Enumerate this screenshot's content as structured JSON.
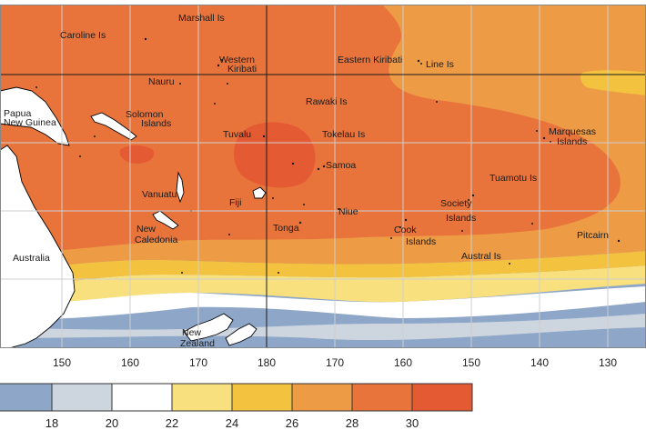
{
  "map": {
    "longitude_ticks": [
      "150",
      "160",
      "170",
      "180",
      "170",
      "160",
      "150",
      "140",
      "130"
    ],
    "places": [
      {
        "id": "marshall-is",
        "text": "Marshall Is"
      },
      {
        "id": "caroline-is",
        "text": "Caroline Is"
      },
      {
        "id": "western-kiribati-1",
        "text": "Western"
      },
      {
        "id": "western-kiribati-2",
        "text": "Kiribati"
      },
      {
        "id": "eastern-kiribati",
        "text": "Eastern Kiribati"
      },
      {
        "id": "line-is",
        "text": "Line Is"
      },
      {
        "id": "nauru",
        "text": "Nauru"
      },
      {
        "id": "papua-1",
        "text": "Papua"
      },
      {
        "id": "papua-2",
        "text": "New Guinea"
      },
      {
        "id": "solomon-1",
        "text": "Solomon"
      },
      {
        "id": "solomon-2",
        "text": "Islands"
      },
      {
        "id": "phoenix-is",
        "text": "Rawaki Is"
      },
      {
        "id": "marquesas-1",
        "text": "Marquesas"
      },
      {
        "id": "marquesas-2",
        "text": "Islands"
      },
      {
        "id": "tuvalu",
        "text": "Tuvalu"
      },
      {
        "id": "tokelau",
        "text": "Tokelau Is"
      },
      {
        "id": "samoa",
        "text": "Samoa"
      },
      {
        "id": "tuamotu",
        "text": "Tuamotu Is"
      },
      {
        "id": "vanuatu",
        "text": "Vanuatu"
      },
      {
        "id": "fiji",
        "text": "Fiji"
      },
      {
        "id": "niue",
        "text": "Niue"
      },
      {
        "id": "society-1",
        "text": "Society"
      },
      {
        "id": "society-2",
        "text": "Islands"
      },
      {
        "id": "new-caledonia-1",
        "text": "New"
      },
      {
        "id": "new-caledonia-2",
        "text": "Caledonia"
      },
      {
        "id": "tonga",
        "text": "Tonga"
      },
      {
        "id": "cook-1",
        "text": "Cook"
      },
      {
        "id": "cook-2",
        "text": "Islands"
      },
      {
        "id": "pitcairn",
        "text": "Pitcairn"
      },
      {
        "id": "australia",
        "text": "Australia"
      },
      {
        "id": "austral-is",
        "text": "Austral Is"
      },
      {
        "id": "new-zealand-1",
        "text": "New"
      },
      {
        "id": "new-zealand-2",
        "text": "Zealand"
      }
    ]
  },
  "legend": {
    "colors": [
      "#8ea7c9",
      "#cdd5df",
      "#ffffff",
      "#f7e07d",
      "#f3c23f",
      "#ee9b45",
      "#e8743c",
      "#e45a33"
    ],
    "labels": [
      "18",
      "20",
      "22",
      "24",
      "26",
      "28",
      "30"
    ]
  }
}
